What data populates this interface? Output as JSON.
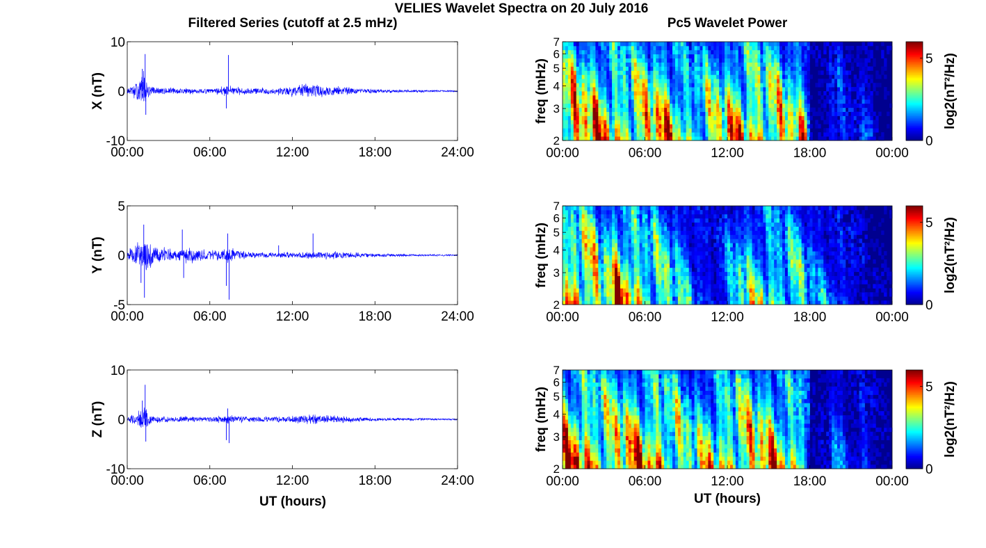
{
  "figure": {
    "title": "VELIES Wavelet Spectra on 20 July 2016",
    "left_column_title": "Filtered Series (cutoff at 2.5 mHz)",
    "right_column_title": "Pc5 Wavelet Power",
    "x_label": "UT (hours)"
  },
  "colors": {
    "trace": "#0000ff",
    "axis": "#000000",
    "colormap": [
      "#00008f",
      "#0000ff",
      "#0080ff",
      "#00ffff",
      "#80ff80",
      "#ffff00",
      "#ff8000",
      "#ff0000",
      "#800000"
    ]
  },
  "chart_data": [
    {
      "type": "line",
      "component": "X",
      "ylabel": "X (nT)",
      "ylim": [
        -10,
        10
      ],
      "yticks": [
        -10,
        0,
        10
      ],
      "xlim_hours": [
        0,
        24
      ],
      "xticks": [
        "00:00",
        "06:00",
        "12:00",
        "18:00",
        "24:00"
      ],
      "envelope_hours": [
        0,
        0.5,
        1.0,
        1.2,
        1.3,
        1.5,
        2,
        3,
        4,
        5,
        6,
        7,
        7.2,
        7.3,
        7.5,
        8,
        9,
        10,
        11,
        12,
        13,
        13.5,
        14,
        15,
        16,
        17,
        18,
        19,
        20,
        21,
        22,
        23,
        24
      ],
      "envelope_nT": [
        0.6,
        1.5,
        3.0,
        5.0,
        3.0,
        1.5,
        1.0,
        0.8,
        0.7,
        0.6,
        0.6,
        1.0,
        1.6,
        1.2,
        1.2,
        0.9,
        0.8,
        0.8,
        0.9,
        1.2,
        1.6,
        1.8,
        1.4,
        1.2,
        0.9,
        0.7,
        0.5,
        0.4,
        0.3,
        0.3,
        0.25,
        0.2,
        0.2
      ],
      "spikes": [
        {
          "hour": 1.3,
          "value": 7.5
        },
        {
          "hour": 1.35,
          "value": -4.8
        },
        {
          "hour": 1.1,
          "value": 4.5
        },
        {
          "hour": 7.35,
          "value": 7.3
        },
        {
          "hour": 7.2,
          "value": -3.5
        }
      ]
    },
    {
      "type": "line",
      "component": "Y",
      "ylabel": "Y (nT)",
      "ylim": [
        -5,
        5
      ],
      "yticks": [
        -5,
        0,
        5
      ],
      "xlim_hours": [
        0,
        24
      ],
      "xticks": [
        "00:00",
        "06:00",
        "12:00",
        "18:00",
        "24:00"
      ],
      "envelope_hours": [
        0,
        0.5,
        1.0,
        1.3,
        1.5,
        2,
        2.5,
        3,
        4,
        4.5,
        5,
        6,
        7,
        7.4,
        8,
        9,
        10,
        11,
        12,
        13,
        14,
        15,
        16,
        17,
        18,
        19,
        20,
        21,
        22,
        23,
        24
      ],
      "envelope_nT": [
        0.5,
        1.2,
        2.0,
        2.6,
        1.8,
        1.2,
        0.9,
        0.7,
        0.8,
        1.1,
        0.8,
        0.6,
        0.6,
        0.9,
        0.5,
        0.35,
        0.3,
        0.3,
        0.35,
        0.4,
        0.45,
        0.45,
        0.35,
        0.3,
        0.25,
        0.2,
        0.15,
        0.12,
        0.1,
        0.1,
        0.1
      ],
      "spikes": [
        {
          "hour": 1.2,
          "value": 3.1
        },
        {
          "hour": 1.25,
          "value": -4.3
        },
        {
          "hour": 1.0,
          "value": -2.8
        },
        {
          "hour": 4.0,
          "value": 2.6
        },
        {
          "hour": 4.1,
          "value": -2.3
        },
        {
          "hour": 7.3,
          "value": 2.2
        },
        {
          "hour": 7.4,
          "value": -4.5
        },
        {
          "hour": 7.2,
          "value": -3.1
        },
        {
          "hour": 13.5,
          "value": 2.2
        },
        {
          "hour": 11.0,
          "value": 1.0
        }
      ]
    },
    {
      "type": "line",
      "component": "Z",
      "ylabel": "Z (nT)",
      "ylim": [
        -10,
        10
      ],
      "yticks": [
        -10,
        0,
        10
      ],
      "xlim_hours": [
        0,
        24
      ],
      "xticks": [
        "00:00",
        "06:00",
        "12:00",
        "18:00",
        "24:00"
      ],
      "envelope_hours": [
        0,
        0.5,
        1.0,
        1.2,
        1.4,
        1.7,
        2,
        3,
        4,
        5,
        6,
        7,
        7.3,
        7.6,
        8,
        9,
        10,
        11,
        12,
        13,
        14,
        15,
        16,
        17,
        18,
        19,
        20,
        21,
        22,
        23,
        24
      ],
      "envelope_nT": [
        0.5,
        1.2,
        2.5,
        3.5,
        2.5,
        1.2,
        0.8,
        0.7,
        0.7,
        0.6,
        0.6,
        0.8,
        1.3,
        0.9,
        0.8,
        0.7,
        0.6,
        0.7,
        0.8,
        1.0,
        1.0,
        0.8,
        0.7,
        0.5,
        0.4,
        0.35,
        0.3,
        0.3,
        0.25,
        0.2,
        0.2
      ],
      "spikes": [
        {
          "hour": 1.3,
          "value": 7.0
        },
        {
          "hour": 1.35,
          "value": -4.5
        },
        {
          "hour": 1.1,
          "value": 3.8
        },
        {
          "hour": 7.2,
          "value": -4.2
        },
        {
          "hour": 7.4,
          "value": -4.8
        },
        {
          "hour": 7.3,
          "value": 2.2
        }
      ]
    },
    {
      "type": "heatmap",
      "component": "X",
      "ylabel": "freq (mHz)",
      "ylim_mHz": [
        2,
        7
      ],
      "yscale": "log",
      "yticks": [
        2,
        3,
        4,
        5,
        6,
        7
      ],
      "xlim_hours": [
        0,
        24
      ],
      "xticks": [
        "00:00",
        "06:00",
        "12:00",
        "18:00",
        "00:00"
      ],
      "colorbar_label": "log2(nT²/Hz)",
      "colorbar_ticks": [
        0,
        5
      ],
      "clim": [
        0,
        6
      ],
      "activity_hours": [
        0,
        1,
        2,
        3,
        4,
        5,
        6,
        7,
        8,
        9,
        10,
        11,
        12,
        13,
        14,
        15,
        16,
        17,
        17.8,
        18,
        19,
        20,
        21,
        22,
        23,
        24
      ],
      "activity_level": [
        5.5,
        6.0,
        5.8,
        5.2,
        5.0,
        5.2,
        5.3,
        5.8,
        5.0,
        4.0,
        3.8,
        4.5,
        5.0,
        5.5,
        5.8,
        5.3,
        4.8,
        4.5,
        4.2,
        0.0,
        0.5,
        2.0,
        0.5,
        1.5,
        0.2,
        0.0
      ]
    },
    {
      "type": "heatmap",
      "component": "Y",
      "ylabel": "freq (mHz)",
      "ylim_mHz": [
        2,
        7
      ],
      "yscale": "log",
      "yticks": [
        2,
        3,
        4,
        5,
        6,
        7
      ],
      "xlim_hours": [
        0,
        24
      ],
      "xticks": [
        "00:00",
        "06:00",
        "12:00",
        "18:00",
        "00:00"
      ],
      "colorbar_label": "log2(nT²/Hz)",
      "colorbar_ticks": [
        0,
        5
      ],
      "clim": [
        0,
        6
      ],
      "activity_hours": [
        0,
        1,
        2,
        3,
        4,
        5,
        6,
        7,
        8,
        9,
        10,
        11,
        12,
        13,
        14,
        15,
        16,
        17,
        18,
        19,
        20,
        21,
        22,
        23,
        24
      ],
      "activity_level": [
        5.0,
        6.0,
        5.8,
        4.0,
        5.8,
        5.5,
        4.5,
        4.0,
        3.5,
        2.5,
        1.5,
        1.0,
        2.0,
        3.5,
        3.5,
        3.8,
        3.5,
        3.8,
        2.5,
        2.0,
        1.5,
        1.2,
        0.5,
        0.2,
        0.0
      ]
    },
    {
      "type": "heatmap",
      "component": "Z",
      "ylabel": "freq (mHz)",
      "ylim_mHz": [
        2,
        7
      ],
      "yscale": "log",
      "yticks": [
        2,
        3,
        4,
        5,
        6,
        7
      ],
      "xlim_hours": [
        0,
        24
      ],
      "xticks": [
        "00:00",
        "06:00",
        "12:00",
        "18:00",
        "00:00"
      ],
      "colorbar_label": "log2(nT²/Hz)",
      "colorbar_ticks": [
        0,
        5
      ],
      "clim": [
        0,
        6
      ],
      "activity_hours": [
        0,
        1,
        2,
        3,
        4,
        5,
        6,
        7,
        8,
        9,
        10,
        11,
        12,
        13,
        14,
        15,
        16,
        17,
        17.8,
        18,
        19,
        20,
        21,
        22,
        23,
        24
      ],
      "activity_level": [
        5.5,
        6.0,
        5.8,
        5.2,
        5.3,
        5.5,
        5.5,
        5.8,
        5.0,
        4.0,
        3.8,
        4.5,
        5.0,
        5.5,
        5.5,
        5.3,
        4.8,
        4.5,
        4.0,
        0.0,
        0.5,
        2.0,
        0.5,
        1.5,
        0.2,
        0.0
      ]
    }
  ]
}
